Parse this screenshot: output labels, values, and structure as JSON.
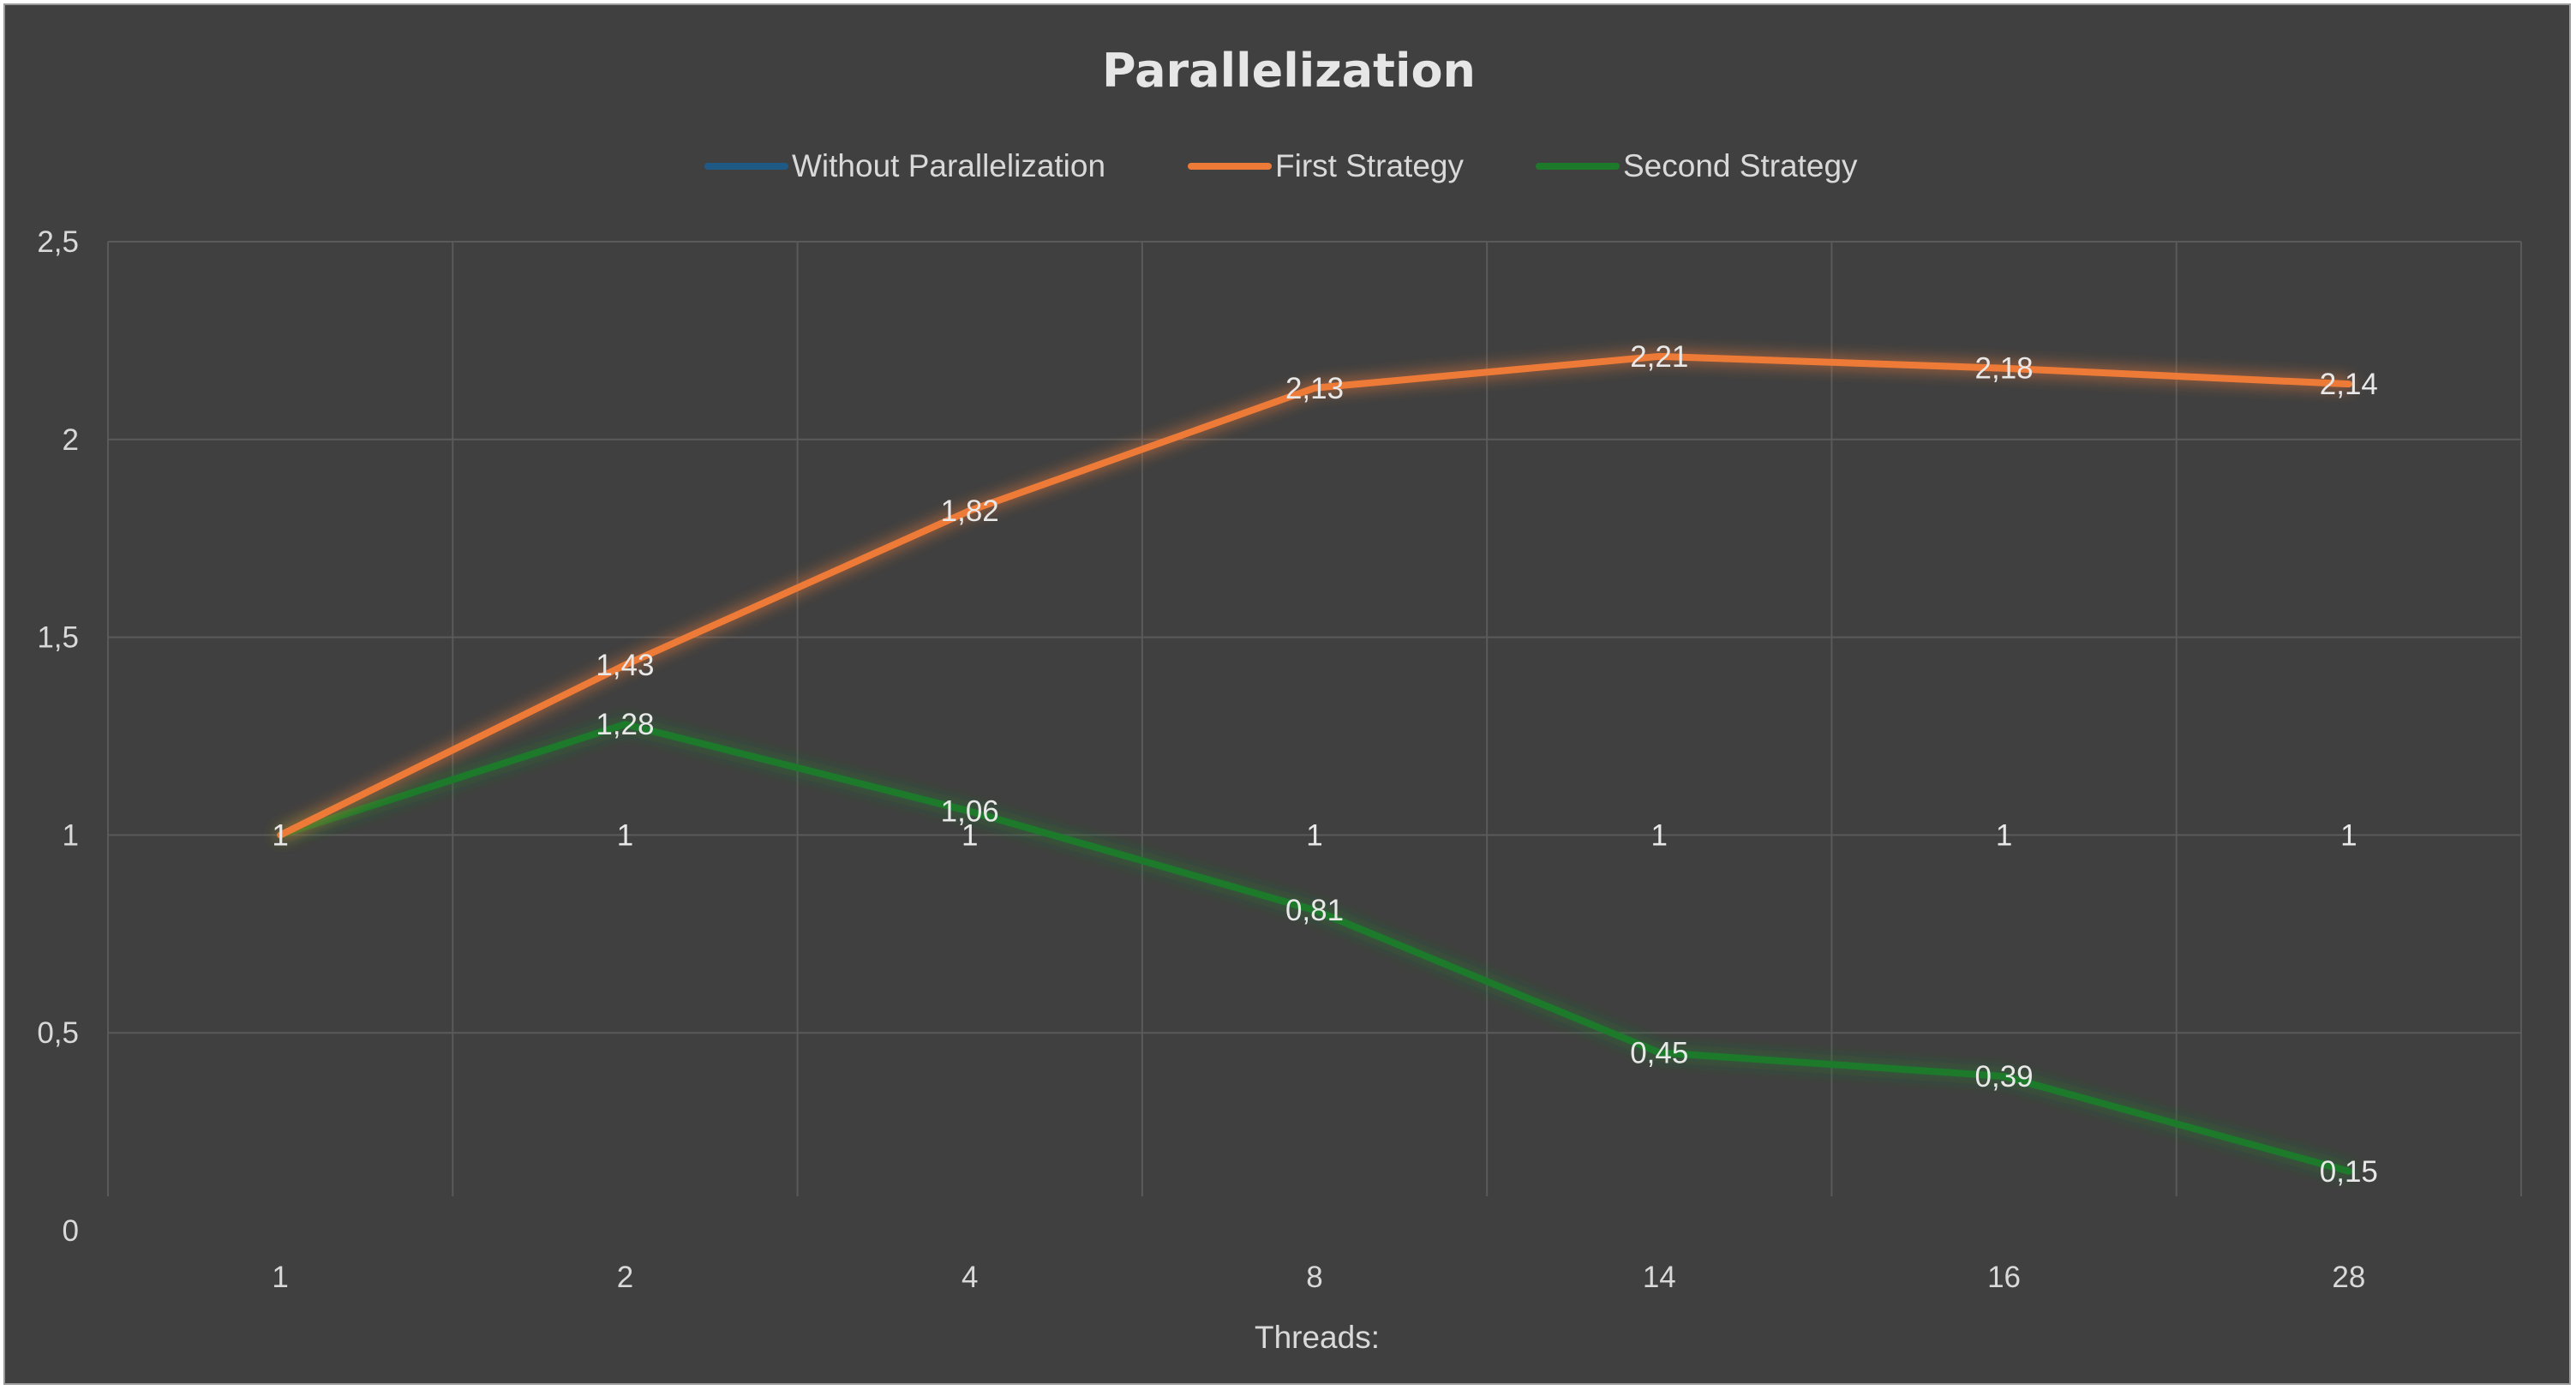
{
  "chart_data": {
    "type": "line",
    "title": "Parallelization",
    "xlabel": "Threads:",
    "ylabel": "",
    "categories": [
      "1",
      "2",
      "4",
      "8",
      "14",
      "16",
      "28"
    ],
    "ylim": [
      0,
      2.5
    ],
    "yticks": [
      "0",
      "0,5",
      "1",
      "1,5",
      "2",
      "2,5"
    ],
    "ytick_values": [
      0,
      0.5,
      1,
      1.5,
      2,
      2.5
    ],
    "grid": true,
    "legend_position": "top",
    "series": [
      {
        "name": "Without Parallelization",
        "color": "#1f5a86",
        "values": [
          1,
          1,
          1,
          1,
          1,
          1,
          1
        ],
        "labels": [
          "1",
          "1",
          "1",
          "1",
          "1",
          "1",
          "1"
        ]
      },
      {
        "name": "First Strategy",
        "color": "#ee7a37",
        "values": [
          1,
          1.43,
          1.82,
          2.13,
          2.21,
          2.18,
          2.14
        ],
        "labels": [
          "1",
          "1,43",
          "1,82",
          "2,13",
          "2,21",
          "2,18",
          "2,14"
        ]
      },
      {
        "name": "Second Strategy",
        "color": "#1d7a2a",
        "values": [
          1,
          1.28,
          1.06,
          0.81,
          0.45,
          0.39,
          0.15
        ],
        "labels": [
          "1",
          "1,28",
          "1,06",
          "0,81",
          "0,45",
          "0,39",
          "0,15"
        ]
      }
    ]
  }
}
